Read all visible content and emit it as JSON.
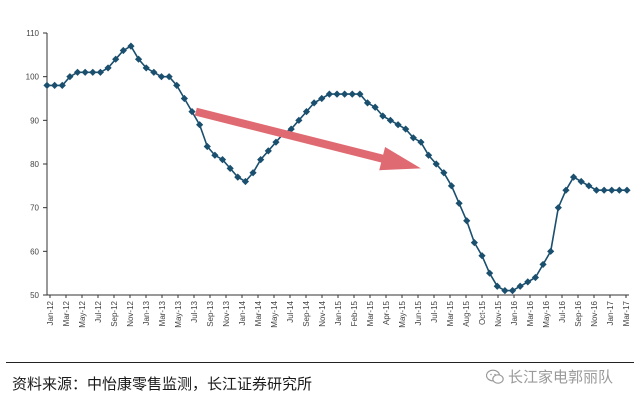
{
  "chart_data": {
    "type": "line",
    "title": "",
    "xlabel": "",
    "ylabel": "",
    "ylim": [
      50,
      110
    ],
    "yticks": [
      "50",
      "60",
      "70",
      "80",
      "90",
      "100",
      "110"
    ],
    "x_tick_labels": [
      "Jan-12",
      "Mar-12",
      "May-12",
      "Jul-12",
      "Sep-12",
      "Nov-12",
      "Jan-13",
      "Mar-13",
      "May-13",
      "Jul-13",
      "Sep-13",
      "Nov-13",
      "Jan-14",
      "Mar-14",
      "May-14",
      "Jul-14",
      "Sep-14",
      "Nov-14",
      "Jan-15",
      "Feb-15",
      "Mar-15",
      "Apr-15",
      "May-15",
      "Jun-15",
      "Jul-15",
      "Mar-15",
      "Aug-15",
      "Oct-15",
      "Nov-15",
      "Jan-16",
      "Mar-16",
      "May-16",
      "Jul-16",
      "Sep-16",
      "Nov-16",
      "Jan-17",
      "Mar-17"
    ],
    "series": [
      {
        "color": "#1a4f6e",
        "values": [
          98,
          98,
          98,
          100,
          101,
          101,
          101,
          101,
          102,
          104,
          106,
          107,
          104,
          102,
          101,
          100,
          100,
          98,
          95,
          92,
          89,
          84,
          82,
          81,
          79,
          77,
          76,
          78,
          81,
          83,
          85,
          87,
          88,
          90,
          92,
          94,
          95,
          96,
          96,
          96,
          96,
          96,
          94,
          93,
          91,
          90,
          89,
          88,
          86,
          85,
          82,
          80,
          78,
          75,
          71,
          67,
          62,
          59,
          55,
          52,
          51,
          51,
          52,
          53,
          54,
          57,
          60,
          70,
          74,
          77,
          76,
          75,
          74,
          74,
          74,
          74,
          74
        ]
      }
    ],
    "annotation": {
      "type": "arrow",
      "color": "#e06a72",
      "from": {
        "x_index": 19.5,
        "y": 92
      },
      "to": {
        "x_index": 49,
        "y": 79
      }
    },
    "grid": false,
    "legend": "none"
  },
  "source": {
    "text": "资料来源：中怡康零售监测，长江证券研究所"
  },
  "watermark": {
    "text": "长江家电郭丽队",
    "icon": "wechat-icon"
  }
}
